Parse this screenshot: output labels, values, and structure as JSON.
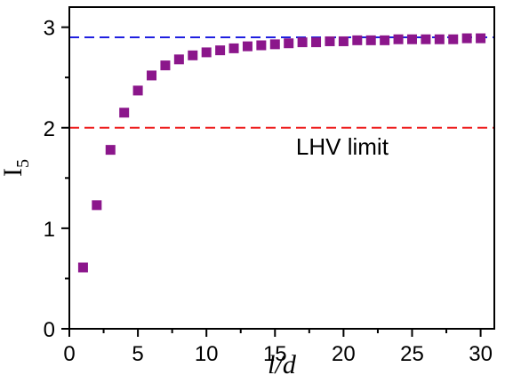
{
  "chart_data": {
    "type": "scatter",
    "xlabel": "l/d",
    "ylabel": "I",
    "ylabel_subscript": "5",
    "xlim": [
      0,
      31
    ],
    "ylim": [
      0,
      3.2
    ],
    "xticks": [
      0,
      5,
      10,
      15,
      20,
      25,
      30
    ],
    "yticks": [
      0,
      1,
      2,
      3
    ],
    "grid": false,
    "series": [
      {
        "color": "#8b168b",
        "marker": "square",
        "points": [
          [
            1,
            0.61
          ],
          [
            2,
            1.23
          ],
          [
            3,
            1.78
          ],
          [
            4,
            2.15
          ],
          [
            5,
            2.37
          ],
          [
            6,
            2.52
          ],
          [
            7,
            2.62
          ],
          [
            8,
            2.68
          ],
          [
            9,
            2.72
          ],
          [
            10,
            2.75
          ],
          [
            11,
            2.77
          ],
          [
            12,
            2.79
          ],
          [
            13,
            2.81
          ],
          [
            14,
            2.82
          ],
          [
            15,
            2.83
          ],
          [
            16,
            2.84
          ],
          [
            17,
            2.85
          ],
          [
            18,
            2.85
          ],
          [
            19,
            2.86
          ],
          [
            20,
            2.86
          ],
          [
            21,
            2.87
          ],
          [
            22,
            2.87
          ],
          [
            23,
            2.87
          ],
          [
            24,
            2.88
          ],
          [
            25,
            2.88
          ],
          [
            26,
            2.88
          ],
          [
            27,
            2.88
          ],
          [
            28,
            2.88
          ],
          [
            29,
            2.89
          ],
          [
            30,
            2.89
          ]
        ]
      }
    ],
    "reference_lines": [
      {
        "y": 2.9,
        "color": "#1f1fe0",
        "style": "dashed"
      },
      {
        "y": 2.0,
        "color": "#ee1c1c",
        "style": "dashed"
      }
    ],
    "annotations": [
      {
        "text": "LHV limit",
        "x": 22.5,
        "y": 1.77
      }
    ]
  }
}
